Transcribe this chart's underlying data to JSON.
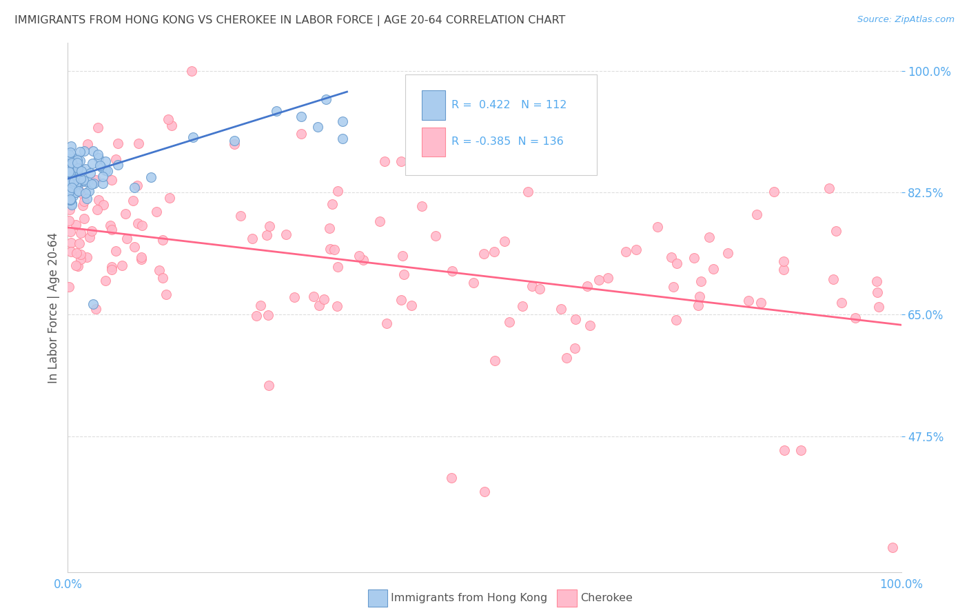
{
  "title": "IMMIGRANTS FROM HONG KONG VS CHEROKEE IN LABOR FORCE | AGE 20-64 CORRELATION CHART",
  "source": "Source: ZipAtlas.com",
  "ylabel": "In Labor Force | Age 20-64",
  "xlim": [
    0.0,
    1.0
  ],
  "ylim": [
    0.28,
    1.04
  ],
  "yticks": [
    0.475,
    0.65,
    0.825,
    1.0
  ],
  "ytick_labels": [
    "47.5%",
    "65.0%",
    "82.5%",
    "100.0%"
  ],
  "xtick_labels": [
    "0.0%",
    "100.0%"
  ],
  "xticks": [
    0.0,
    1.0
  ],
  "blue_R": 0.422,
  "blue_N": 112,
  "pink_R": -0.385,
  "pink_N": 136,
  "background_color": "#ffffff",
  "grid_color": "#dddddd",
  "title_color": "#444444",
  "axis_label_color": "#555555",
  "blue_dot_color": "#aaccee",
  "blue_dot_edge": "#6699cc",
  "pink_dot_color": "#ffbbcc",
  "pink_dot_edge": "#ff8899",
  "blue_line_color": "#4477cc",
  "pink_line_color": "#ff6688",
  "tick_label_color": "#55aaee",
  "legend_box_blue_fill": "#aaccee",
  "legend_box_blue_edge": "#6699cc",
  "legend_box_pink_fill": "#ffbbcc",
  "legend_box_pink_edge": "#ff8899",
  "legend_text_color": "#55aaee"
}
